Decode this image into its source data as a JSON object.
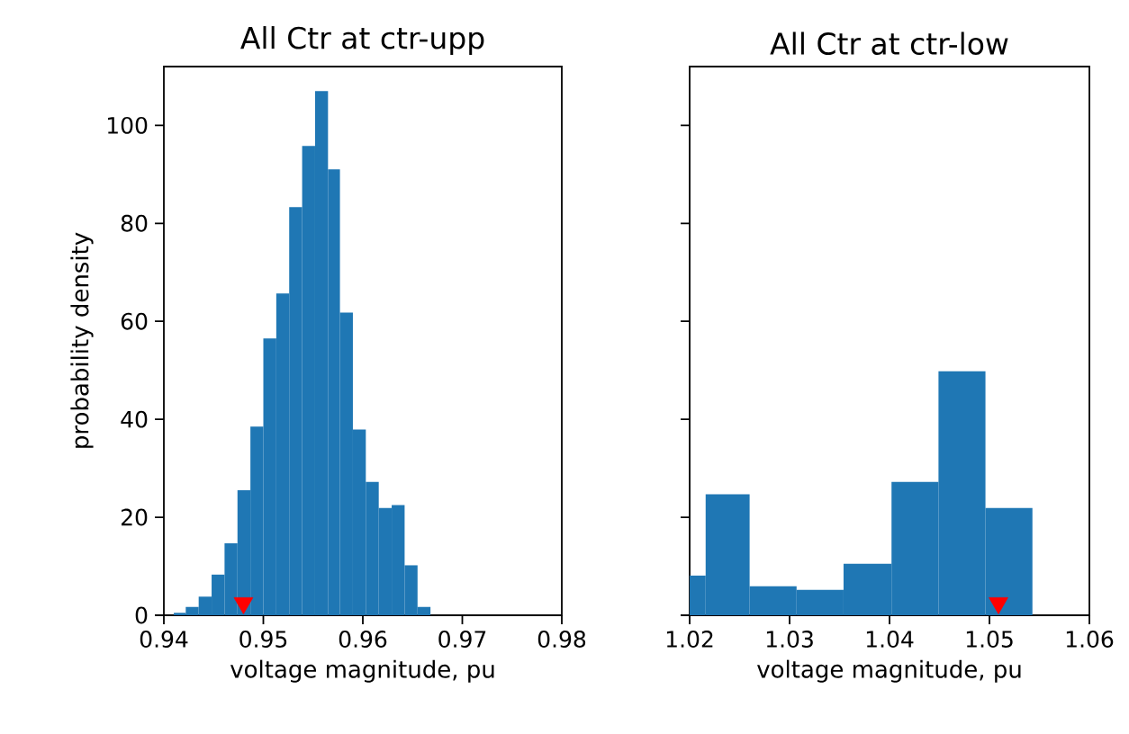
{
  "chart_data": [
    {
      "type": "histogram",
      "title": "All Ctr at ctr-upp",
      "xlabel": "voltage magnitude, pu",
      "ylabel": "probability density",
      "xlim": [
        0.94,
        0.98
      ],
      "ylim": [
        0,
        112
      ],
      "xticks": [
        0.94,
        0.95,
        0.96,
        0.97,
        0.98
      ],
      "yticks": [
        0,
        20,
        40,
        60,
        80,
        100
      ],
      "grid": false,
      "series": [
        {
          "color": "#1f77b4",
          "bins": [
            0.941,
            0.9422,
            0.9435,
            0.9448,
            0.9461,
            0.9474,
            0.9487,
            0.95,
            0.9513,
            0.9526,
            0.9539,
            0.9552,
            0.9565,
            0.9577,
            0.959,
            0.9603,
            0.9616,
            0.9629,
            0.9642,
            0.9655,
            0.9668
          ],
          "values": [
            0.5,
            1.7,
            3.8,
            8.3,
            14.7,
            25.5,
            38.5,
            56.5,
            65.7,
            83.3,
            95.8,
            107,
            91,
            61.8,
            37.9,
            27.2,
            21.9,
            22.5,
            10.2,
            1.7
          ]
        },
        {
          "type": "scatter",
          "color": "#ff0000",
          "marker": "triangle",
          "x": [
            0.948
          ],
          "values": [
            2.5
          ]
        }
      ]
    },
    {
      "type": "histogram",
      "title": "All Ctr at ctr-low",
      "xlabel": "voltage magnitude, pu",
      "xlim": [
        1.02,
        1.06
      ],
      "ylim": [
        0,
        112
      ],
      "xticks": [
        1.02,
        1.03,
        1.04,
        1.05,
        1.06
      ],
      "yticks": [
        0,
        20,
        40,
        60,
        80,
        100
      ],
      "tick_labels": "x",
      "grid": false,
      "series": [
        {
          "color": "#1f77b4",
          "bins": [
            1.02,
            1.0216,
            1.026,
            1.0307,
            1.0354,
            1.0402,
            1.0449,
            1.0496,
            1.0543
          ],
          "values": [
            8.1,
            24.7,
            5.9,
            5.2,
            10.5,
            27.2,
            49.8,
            21.9
          ]
        },
        {
          "type": "scatter",
          "color": "#ff0000",
          "marker": "triangle",
          "x": [
            1.0509
          ],
          "values": [
            2.5
          ]
        }
      ]
    }
  ]
}
